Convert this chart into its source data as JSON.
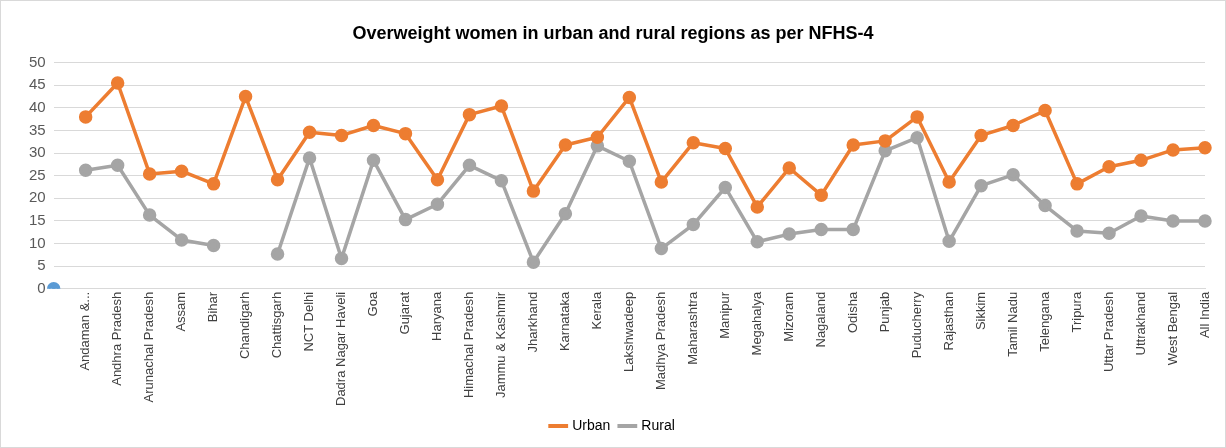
{
  "chart_data": {
    "type": "line",
    "title": "Overweight women in urban and rural regions as per NFHS-4",
    "categories": [
      null,
      "Andaman &...",
      "Andhra Pradesh",
      "Arunachal Pradesh",
      "Assam",
      "Bihar",
      "Chandigarh",
      "Chattisgarh",
      "NCT Delhi",
      "Dadra Nagar Haveli",
      "Goa",
      "Gujarat",
      "Haryana",
      "Himachal Pradesh",
      "Jammu & Kashmir",
      "Jharkhand",
      "Karnataka",
      "Kerala",
      "Lakshwadeep",
      "Madhya Pradesh",
      "Maharashtra",
      "Manipur",
      "Megahalya",
      "Mizoram",
      "Nagaland",
      "Odisha",
      "Punjab",
      "Puducherry",
      "Rajasthan",
      "Sikkim",
      "Tamil Nadu",
      "Telengana",
      "Tripura",
      "Uttar Pradesh",
      "Uttrakhand",
      "West Bengal",
      "All India"
    ],
    "series": [
      {
        "name": "Urban",
        "color": "#ed7d31",
        "values": [
          null,
          38.0,
          45.5,
          25.4,
          26.0,
          23.2,
          42.5,
          24.1,
          34.6,
          33.9,
          36.1,
          34.3,
          24.1,
          38.5,
          40.4,
          21.6,
          31.8,
          33.5,
          42.3,
          23.6,
          32.3,
          31.0,
          18.1,
          26.7,
          20.7,
          31.8,
          32.7,
          38.0,
          23.6,
          33.9,
          36.1,
          39.4,
          23.2,
          27.0,
          28.4,
          30.7,
          31.2
        ]
      },
      {
        "name": "Rural",
        "color": "#a5a5a5",
        "values": [
          null,
          26.2,
          27.3,
          16.3,
          10.8,
          9.6,
          null,
          7.7,
          28.9,
          6.7,
          28.4,
          15.3,
          18.7,
          27.3,
          23.9,
          5.9,
          16.6,
          31.6,
          28.2,
          8.9,
          14.2,
          22.4,
          10.4,
          12.1,
          13.1,
          13.1,
          30.5,
          33.4,
          10.5,
          22.8,
          25.2,
          18.4,
          12.8,
          12.3,
          16.1,
          15.0,
          15.0
        ]
      },
      {
        "color": "#5b9bd5",
        "values": [
          0,
          null,
          null,
          null,
          null,
          null,
          null,
          null,
          null,
          null,
          null,
          null,
          null,
          null,
          null,
          null,
          null,
          null,
          null,
          null,
          null,
          null,
          null,
          null,
          null,
          null,
          null,
          null,
          null,
          null,
          null,
          null,
          null,
          null,
          null,
          null,
          null
        ]
      }
    ],
    "ylim": [
      0,
      50
    ],
    "yticks": [
      0,
      5,
      10,
      15,
      20,
      25,
      30,
      35,
      40,
      45,
      50
    ],
    "grid": "y",
    "legend": "bottom",
    "marker": "circle",
    "line_style": "solid"
  }
}
